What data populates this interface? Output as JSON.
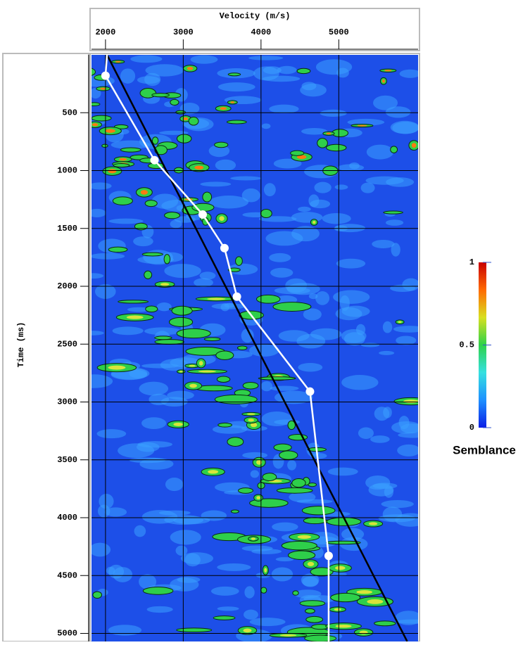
{
  "chart_data": {
    "type": "line",
    "xlabel": "Velocity (m/s)",
    "ylabel": "Time (ms)",
    "xlim": [
      1820,
      6020
    ],
    "xticks": [
      2000,
      3000,
      4000,
      5000
    ],
    "ylim": [
      0,
      5070
    ],
    "yticks": [
      500,
      1000,
      1500,
      2000,
      2500,
      3000,
      3500,
      4000,
      4500,
      5000
    ],
    "y_inverted": true,
    "x_axis_position": "top",
    "grid": true,
    "series": [
      {
        "color": "#000000",
        "markers": false,
        "x": [
          2020,
          5880
        ],
        "y": [
          0,
          5070
        ]
      },
      {
        "color": "#ffffff",
        "markers": true,
        "x": [
          2020,
          2000,
          2630,
          3250,
          3530,
          3690,
          4630,
          4870,
          4870
        ],
        "y": [
          0,
          180,
          910,
          1380,
          1670,
          2090,
          2910,
          4330,
          5070
        ]
      }
    ],
    "colorbar": {
      "label": "Semblance",
      "lim": [
        0,
        1
      ],
      "ticks": [
        0,
        0.5,
        1
      ],
      "colormap": [
        "#0b1ee6",
        "#1e90ff",
        "#35e0e0",
        "#2ed24a",
        "#d8e020",
        "#ff6a00",
        "#c80000"
      ]
    }
  }
}
